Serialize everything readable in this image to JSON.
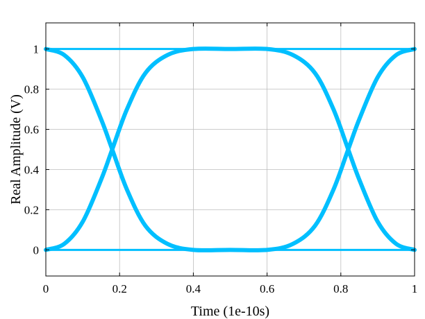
{
  "chart_data": {
    "type": "line",
    "title": "",
    "xlabel": "Time (1e-10s)",
    "ylabel": "Real Amplitude (V)",
    "xlim": [
      0,
      1
    ],
    "ylim": [
      -0.13,
      1.13
    ],
    "xticks": [
      0,
      0.2,
      0.4,
      0.6,
      0.8,
      1
    ],
    "xtick_labels": [
      "0",
      "0.2",
      "0.4",
      "0.6",
      "0.8",
      "1"
    ],
    "yticks": [
      0,
      0.2,
      0.4,
      0.6,
      0.8,
      1
    ],
    "ytick_labels": [
      "0",
      "0.2",
      "0.4",
      "0.6",
      "0.8",
      "1"
    ],
    "grid": true,
    "legend": "none",
    "line_color": "#00bfff",
    "crossing_points": [
      {
        "x": 0.18,
        "y": 0.5
      },
      {
        "x": 0.82,
        "y": 0.5
      }
    ],
    "series": [
      {
        "x": [
          0,
          1
        ],
        "y": [
          1,
          1
        ]
      },
      {
        "x": [
          0,
          1
        ],
        "y": [
          0,
          0
        ]
      },
      {
        "x": [
          0,
          0.05,
          0.1,
          0.15,
          0.18,
          0.22,
          0.27,
          0.33,
          0.4,
          0.5,
          0.6,
          0.67,
          0.73,
          0.78,
          0.82,
          0.85,
          0.9,
          0.95,
          1
        ],
        "y": [
          0,
          0.03,
          0.14,
          0.35,
          0.5,
          0.7,
          0.88,
          0.97,
          1,
          1,
          1,
          0.97,
          0.88,
          0.7,
          0.5,
          0.35,
          0.14,
          0.03,
          0
        ]
      },
      {
        "x": [
          0,
          0.05,
          0.1,
          0.15,
          0.18,
          0.22,
          0.27,
          0.33,
          0.4,
          0.5,
          0.6,
          0.67,
          0.73,
          0.78,
          0.82,
          0.85,
          0.9,
          0.95,
          1
        ],
        "y": [
          1,
          0.97,
          0.86,
          0.65,
          0.5,
          0.3,
          0.12,
          0.03,
          0,
          0,
          0,
          0.03,
          0.12,
          0.3,
          0.5,
          0.65,
          0.86,
          0.97,
          1
        ]
      }
    ]
  }
}
